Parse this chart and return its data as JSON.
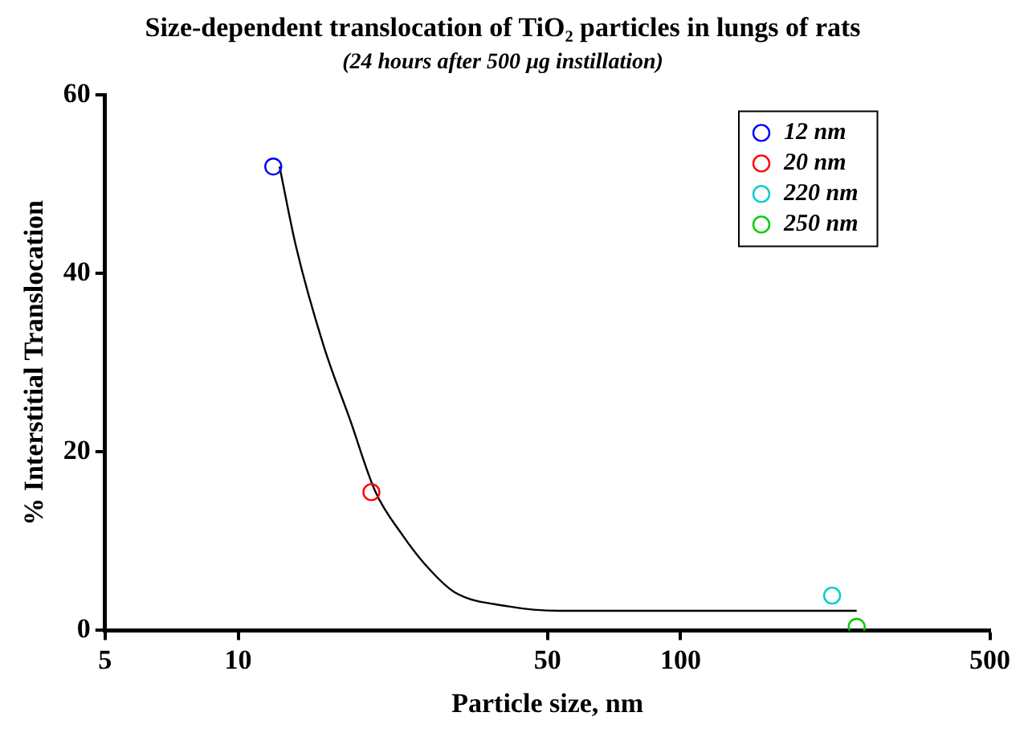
{
  "chart_data": {
    "type": "scatter",
    "title": "Size-dependent translocation of TiO₂ particles in lungs of rats",
    "subtitle": "(24 hours after 500 µg instillation)",
    "xlabel": "Particle size, nm",
    "ylabel": "% Interstitial Translocation",
    "log": "x",
    "xlim": [
      5,
      500
    ],
    "xticks": [
      5,
      10,
      50,
      100,
      500
    ],
    "ylim": [
      0,
      60
    ],
    "yticks": [
      0,
      20,
      40,
      60
    ],
    "grid": false,
    "legend": "top right",
    "marker": "circle",
    "series": [
      {
        "name": "12 nm",
        "color": "#0000ff",
        "x": [
          12
        ],
        "values": [
          52
        ]
      },
      {
        "name": "20 nm",
        "color": "#ff0000",
        "x": [
          20
        ],
        "values": [
          15.5
        ]
      },
      {
        "name": "220 nm",
        "color": "#00cccc",
        "x": [
          220
        ],
        "values": [
          3.9
        ]
      },
      {
        "name": "250 nm",
        "color": "#00cc00",
        "x": [
          250
        ],
        "values": [
          0.4
        ]
      },
      {
        "type": "line",
        "color": "#000000",
        "marker": "none",
        "x": [
          12.4,
          13.5,
          15.6,
          17.9,
          20.4,
          23.5,
          27.0,
          30.8,
          40.7,
          53.4,
          121.5,
          250
        ],
        "values": [
          52,
          43.1,
          31.9,
          23.6,
          15.6,
          10.7,
          6.9,
          4.3,
          2.7,
          2.2,
          2.2,
          2.2
        ]
      }
    ]
  }
}
